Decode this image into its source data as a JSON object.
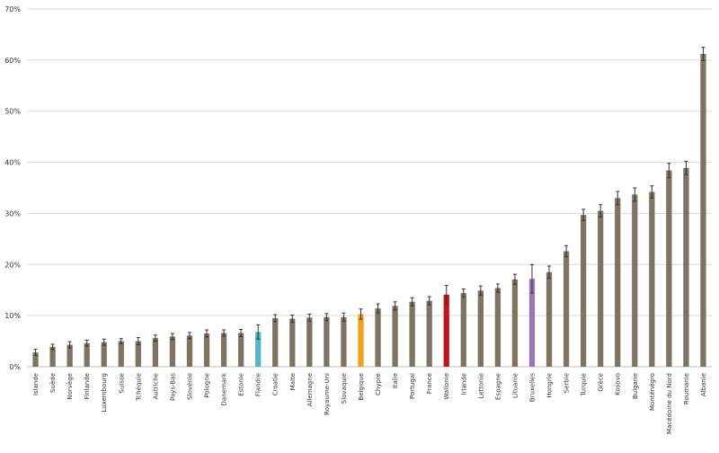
{
  "chart_data": {
    "type": "bar",
    "title": "",
    "xlabel": "",
    "ylabel": "",
    "ylim": [
      0,
      70
    ],
    "y_ticks": [
      "0%",
      "10%",
      "20%",
      "30%",
      "40%",
      "50%",
      "60%",
      "70%"
    ],
    "grid": true,
    "legend": "none",
    "default_color": "#7f7364",
    "categories": [
      "Islande",
      "Suède",
      "Norvège",
      "Finlande",
      "Luxembourg",
      "Suisse",
      "Tchéquie",
      "Autriche",
      "Pays-Bas",
      "Slovénie",
      "Pologne",
      "Danemark",
      "Estonie",
      "Flandre",
      "Croatie",
      "Malte",
      "Allemagne",
      "Royaume-Uni",
      "Slovaquie",
      "Belgique",
      "Chypre",
      "Italie",
      "Portugal",
      "France",
      "Wallonie",
      "Irlande",
      "Lettonie",
      "Espagne",
      "Lituanie",
      "Bruxelles",
      "Hongrie",
      "Serbie",
      "Turquie",
      "Grèce",
      "Kosovo",
      "Bulgarie",
      "Monténégro",
      "Macédoine du Nord",
      "Roumanie",
      "Albanie"
    ],
    "values": [
      2.8,
      3.9,
      4.3,
      4.6,
      4.8,
      5.0,
      5.0,
      5.6,
      5.9,
      6.1,
      6.5,
      6.6,
      6.6,
      6.8,
      9.5,
      9.4,
      9.6,
      9.7,
      9.7,
      10.3,
      11.4,
      11.9,
      12.7,
      12.9,
      14.1,
      14.4,
      14.9,
      15.4,
      17.1,
      17.2,
      18.5,
      22.6,
      29.7,
      30.5,
      33.0,
      33.7,
      34.2,
      38.4,
      38.9,
      61.2
    ],
    "error_bars": [
      0.6,
      0.5,
      0.6,
      0.6,
      0.6,
      0.5,
      0.7,
      0.6,
      0.6,
      0.6,
      0.7,
      0.6,
      0.7,
      1.4,
      0.7,
      0.7,
      0.7,
      0.7,
      0.8,
      1.0,
      0.9,
      0.8,
      0.8,
      0.8,
      1.8,
      0.8,
      0.9,
      0.8,
      1.0,
      2.8,
      1.2,
      1.1,
      1.1,
      1.2,
      1.3,
      1.3,
      1.2,
      1.4,
      1.3,
      1.3
    ],
    "highlight_colors": {
      "Flandre": "#4fb7c6",
      "Belgique": "#f0a01a",
      "Wallonie": "#c0161b",
      "Bruxelles": "#9c76b0"
    }
  }
}
